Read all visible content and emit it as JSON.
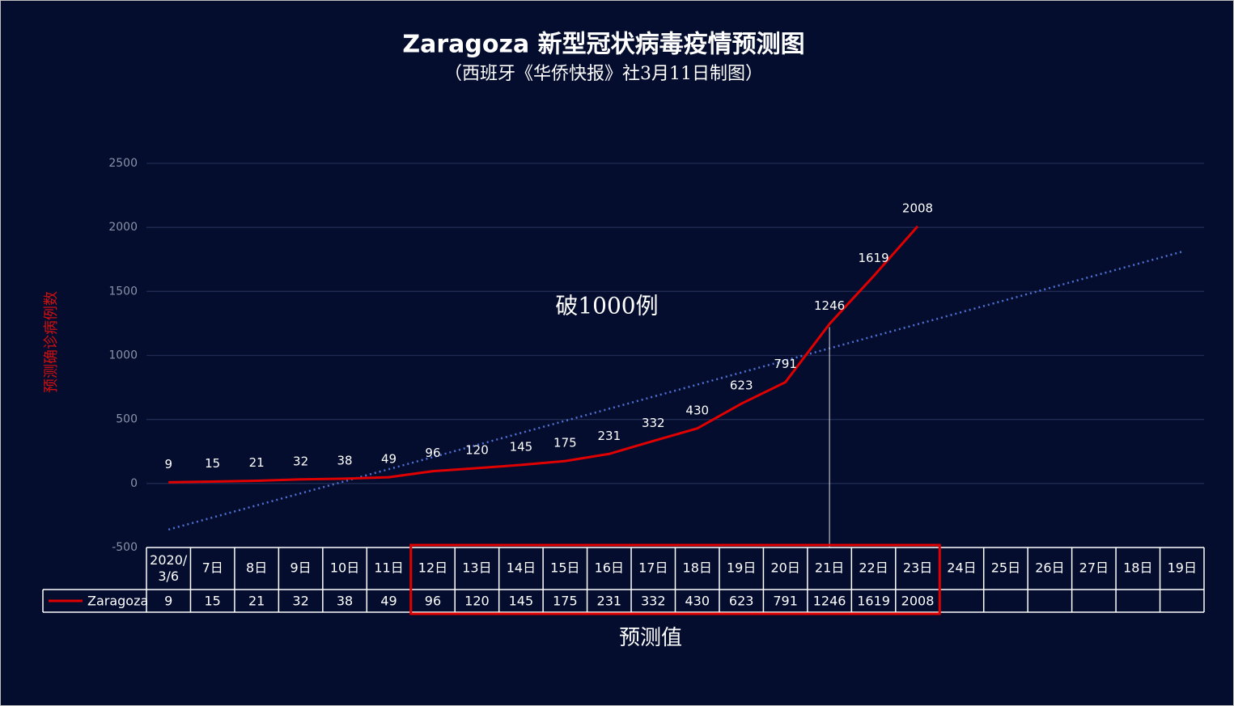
{
  "chart_data": {
    "type": "line",
    "title": "Zaragoza 新型冠状病毒疫情预测图",
    "subtitle": "（西班牙《华侨快报》社3月11日制图）",
    "y_label": "预测确诊病例数",
    "x_label": "预测值",
    "annotation": "破1000例",
    "categories": [
      "2020/\n3/6",
      "7日",
      "8日",
      "9日",
      "10日",
      "11日",
      "12日",
      "13日",
      "14日",
      "15日",
      "16日",
      "17日",
      "18日",
      "19日",
      "20日",
      "21日",
      "22日",
      "23日",
      "24日",
      "25日",
      "26日",
      "27日",
      "18日",
      "19日"
    ],
    "series": [
      {
        "name": "Zaragoza",
        "color": "#e00000",
        "values": [
          9,
          15,
          21,
          32,
          38,
          49,
          96,
          120,
          145,
          175,
          231,
          332,
          430,
          623,
          791,
          1246,
          1619,
          2008,
          null,
          null,
          null,
          null,
          null,
          null
        ]
      }
    ],
    "trendline": {
      "color": "#4f72d6",
      "values": [
        -360,
        1810
      ]
    },
    "ylim": [
      -500,
      2500
    ],
    "yticks": [
      -500,
      0,
      500,
      1000,
      1500,
      2000,
      2500
    ],
    "grid": true
  }
}
